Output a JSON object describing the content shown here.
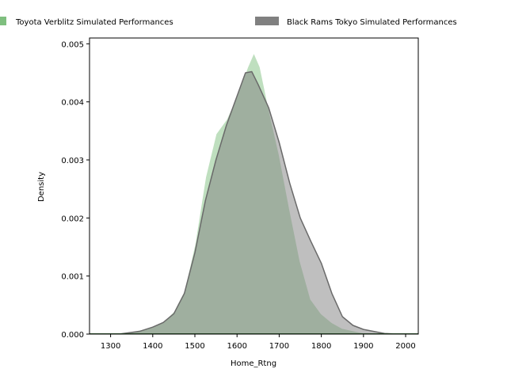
{
  "chart_data": {
    "type": "area",
    "title": "",
    "xlabel": "Home_Rtng",
    "ylabel": "Density",
    "xlim": [
      1250,
      2030
    ],
    "ylim": [
      0,
      0.0051
    ],
    "x_ticks": [
      1300,
      1400,
      1500,
      1600,
      1700,
      1800,
      1900,
      2000
    ],
    "x_tick_labels": [
      "1300",
      "1400",
      "1500",
      "1600",
      "1700",
      "1800",
      "1900",
      "2000"
    ],
    "y_ticks": [
      0,
      0.001,
      0.002,
      0.003,
      0.004,
      0.005
    ],
    "y_tick_labels": [
      "0.000",
      "0.001",
      "0.002",
      "0.003",
      "0.004",
      "0.005"
    ],
    "legend_position": "top-center, outside",
    "grid": false,
    "series": [
      {
        "name": "Toyota Verblitz Simulated Performances",
        "color": "#7fbf7f",
        "x": [
          1300,
          1350,
          1400,
          1425,
          1450,
          1475,
          1500,
          1525,
          1550,
          1575,
          1600,
          1625,
          1640,
          1655,
          1675,
          1700,
          1725,
          1750,
          1775,
          1800,
          1825,
          1850,
          1900,
          1950
        ],
        "y": [
          0.0,
          4e-05,
          0.00012,
          0.00021,
          0.00039,
          0.00075,
          0.00155,
          0.0027,
          0.00345,
          0.0037,
          0.0041,
          0.0046,
          0.00485,
          0.0046,
          0.0039,
          0.0031,
          0.00215,
          0.00125,
          0.0006,
          0.00035,
          0.0002,
          0.0001,
          2e-05,
          0.0
        ]
      },
      {
        "name": "Black Rams Tokyo Simulated Performances",
        "color": "#808080",
        "x": [
          1320,
          1370,
          1400,
          1425,
          1450,
          1475,
          1500,
          1525,
          1550,
          1575,
          1600,
          1620,
          1635,
          1650,
          1675,
          1700,
          1725,
          1750,
          1775,
          1800,
          1825,
          1850,
          1875,
          1900,
          1950,
          1980
        ],
        "y": [
          0.0,
          5e-05,
          0.00012,
          0.0002,
          0.00035,
          0.0007,
          0.0014,
          0.0023,
          0.003,
          0.0036,
          0.0041,
          0.0045,
          0.00452,
          0.0043,
          0.0039,
          0.0033,
          0.0026,
          0.002,
          0.0016,
          0.00122,
          0.0007,
          0.0003,
          0.00015,
          8e-05,
          1e-05,
          0.0
        ]
      }
    ]
  }
}
